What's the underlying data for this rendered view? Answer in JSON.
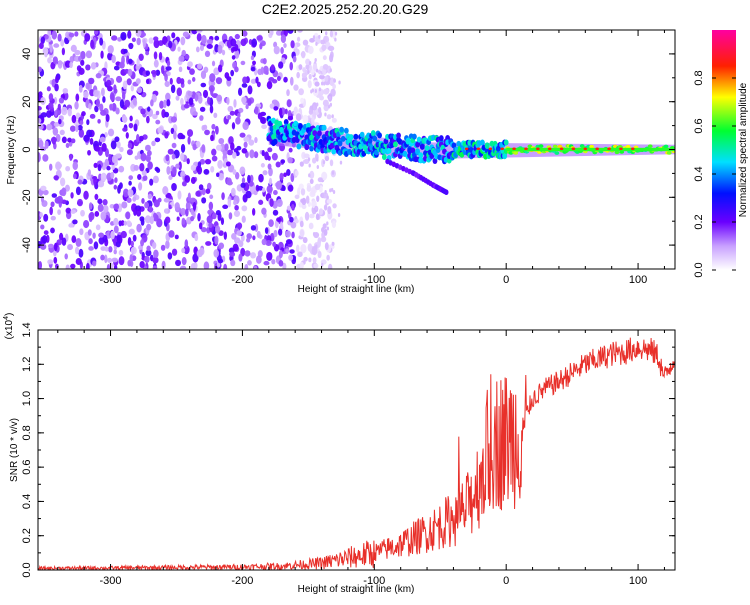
{
  "title": "C2E2.2025.252.20.20.G29",
  "chart_data": [
    {
      "type": "heatmap",
      "xlabel": "Height of straight line (km)",
      "ylabel": "Frequency (Hz)",
      "xlim": [
        -355,
        128
      ],
      "ylim": [
        -50,
        50
      ],
      "xticks": [
        -300,
        -200,
        -100,
        0,
        100
      ],
      "xtick_labels": [
        "-300",
        "-200",
        "-100",
        "0",
        "100"
      ],
      "yticks": [
        -40,
        -20,
        0,
        20,
        40
      ],
      "ytick_labels": [
        "-40",
        "-20",
        "0",
        "20",
        "40"
      ],
      "colorbar": {
        "label": "Normalized spectral amplitude",
        "range": [
          0,
          1
        ],
        "ticks": [
          0.0,
          0.2,
          0.4,
          0.6,
          0.8
        ],
        "tick_labels": [
          "0.0",
          "0.2",
          "0.4",
          "0.6",
          "0.8"
        ],
        "colormap": "rainbow (white-violet-blue-cyan-green-yellow-red-magenta)"
      },
      "features": [
        {
          "desc": "broadband noise region",
          "x_range": [
            -355,
            -160
          ],
          "freq_range": [
            -50,
            50
          ],
          "amplitude": 0.15
        },
        {
          "desc": "signal track",
          "points": [
            [
              -180,
              8
            ],
            [
              -150,
              5
            ],
            [
              -120,
              3
            ],
            [
              -100,
              2
            ],
            [
              -80,
              1
            ],
            [
              -60,
              0
            ],
            [
              -40,
              0
            ],
            [
              -20,
              0
            ],
            [
              0,
              0
            ],
            [
              128,
              0
            ]
          ]
        },
        {
          "desc": "secondary branch",
          "points": [
            [
              -90,
              -5
            ],
            [
              -70,
              -10
            ],
            [
              -55,
              -15
            ],
            [
              -45,
              -18
            ]
          ]
        }
      ]
    },
    {
      "type": "line",
      "xlabel": "Height of straight line (km)",
      "ylabel": "SNR (10 * v/v)",
      "y_multiplier_label": "(x10",
      "y_multiplier_exp": "4",
      "xlim": [
        -355,
        128
      ],
      "ylim": [
        0,
        14000
      ],
      "xticks": [
        -300,
        -200,
        -100,
        0,
        100
      ],
      "xtick_labels": [
        "-300",
        "-200",
        "-100",
        "0",
        "100"
      ],
      "yticks": [
        0,
        2000,
        4000,
        6000,
        8000,
        10000,
        12000,
        14000
      ],
      "ytick_labels": [
        "0.0",
        "0.2",
        "0.4",
        "0.6",
        "0.8",
        "1.0",
        "1.2",
        "1.4"
      ],
      "series": [
        {
          "name": "SNR",
          "color": "#e8302a",
          "x": [
            -355,
            -300,
            -250,
            -200,
            -170,
            -140,
            -120,
            -100,
            -80,
            -60,
            -40,
            -30,
            -20,
            -10,
            0,
            10,
            20,
            30,
            40,
            50,
            60,
            70,
            80,
            90,
            100,
            110,
            115,
            120,
            128
          ],
          "y": [
            100,
            120,
            150,
            180,
            230,
            400,
            700,
            1000,
            1500,
            2200,
            3000,
            3600,
            5300,
            7500,
            7600,
            8000,
            10000,
            10600,
            11000,
            11500,
            12000,
            12300,
            12600,
            12700,
            13000,
            12800,
            12500,
            11200,
            12500
          ]
        }
      ]
    }
  ]
}
